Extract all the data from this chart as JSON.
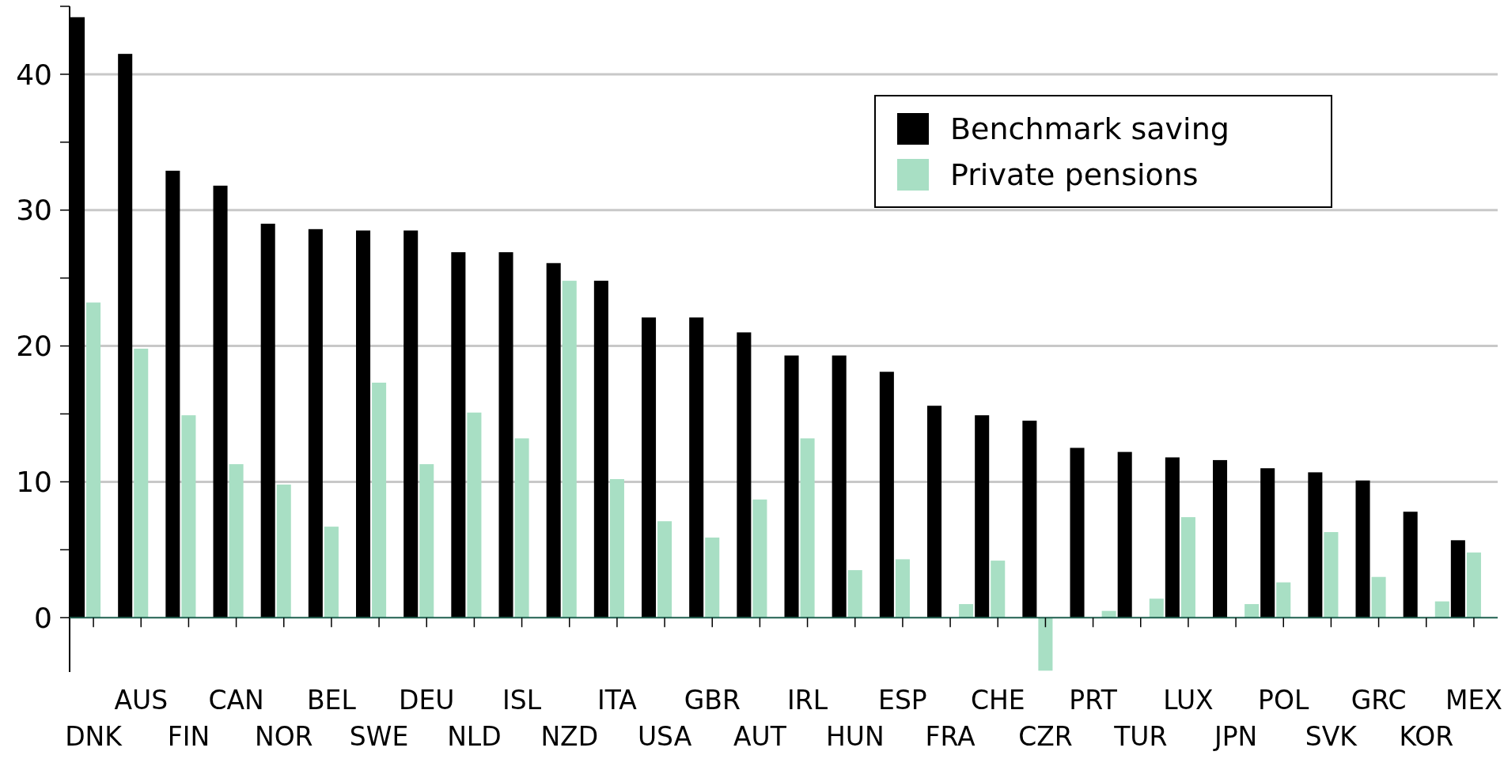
{
  "chart_data": {
    "type": "bar",
    "categories": [
      "DNK",
      "AUS",
      "FIN",
      "CAN",
      "NOR",
      "BEL",
      "SWE",
      "DEU",
      "NLD",
      "ISL",
      "NZD",
      "ITA",
      "USA",
      "GBR",
      "AUT",
      "IRL",
      "HUN",
      "ESP",
      "FRA",
      "CHE",
      "CZR",
      "PRT",
      "TUR",
      "LUX",
      "JPN",
      "POL",
      "SVK",
      "GRC",
      "KOR",
      "MEX"
    ],
    "series": [
      {
        "name": "Benchmark saving",
        "color": "#000000",
        "values": [
          44.2,
          41.5,
          32.9,
          31.8,
          29.0,
          28.6,
          28.5,
          28.5,
          26.9,
          26.9,
          26.1,
          24.8,
          22.1,
          22.1,
          21.0,
          19.3,
          19.3,
          18.1,
          15.6,
          14.9,
          14.5,
          12.5,
          12.2,
          11.8,
          11.6,
          11.0,
          10.7,
          10.1,
          7.8,
          5.7
        ]
      },
      {
        "name": "Private pensions",
        "color": "#a8dfc4",
        "values": [
          23.2,
          19.8,
          14.9,
          11.3,
          9.8,
          6.7,
          17.3,
          11.3,
          15.1,
          13.2,
          24.8,
          10.2,
          7.1,
          5.9,
          8.7,
          13.2,
          3.5,
          4.3,
          null,
          4.2,
          -3.9,
          null,
          null,
          7.4,
          null,
          2.6,
          6.3,
          3.0,
          null,
          4.8
        ]
      },
      {
        "color": "#a8dfc4",
        "values": [
          null,
          null,
          null,
          null,
          null,
          null,
          null,
          null,
          null,
          null,
          null,
          null,
          null,
          null,
          null,
          null,
          null,
          null,
          1.0,
          null,
          null,
          0.5,
          1.4,
          null,
          1.0,
          null,
          null,
          null,
          1.2,
          null
        ]
      }
    ],
    "ylim": [
      -4,
      45
    ],
    "yticks": [
      0,
      {
        "value": 5,
        "label": null
      },
      10,
      {
        "value": 15,
        "label": null
      },
      20,
      {
        "value": 25,
        "label": null
      },
      30,
      {
        "value": 35,
        "label": null
      },
      40,
      {
        "value": 45,
        "label": null
      }
    ],
    "grid": "y",
    "legend": "top right"
  }
}
